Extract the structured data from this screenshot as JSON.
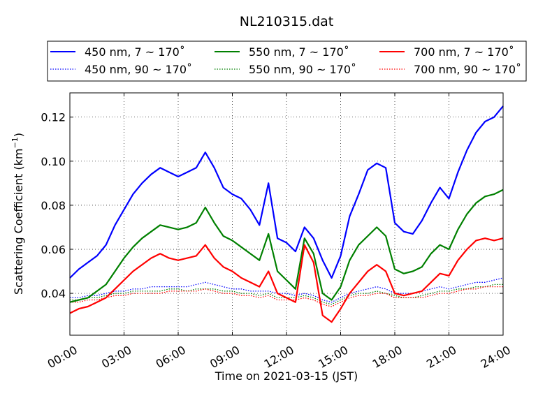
{
  "chart_data": {
    "type": "line",
    "title": "NL210315.dat",
    "xlabel": "Time on 2021-03-15 (JST)",
    "ylabel": "Scattering Coefficient (km",
    "ylabel_sup": "−1",
    "ylabel_end": ")",
    "xlim": [
      "00:00",
      "24:00"
    ],
    "ylim": [
      0.021,
      0.131
    ],
    "x_ticks": [
      "00:00",
      "03:00",
      "06:00",
      "09:00",
      "12:00",
      "15:00",
      "18:00",
      "21:00",
      "24:00"
    ],
    "y_ticks": [
      "0.04",
      "0.06",
      "0.08",
      "0.10",
      "0.12"
    ],
    "y_tick_values": [
      0.04,
      0.06,
      0.08,
      0.1,
      0.12
    ],
    "grid": true,
    "legend_position": "top",
    "x": [
      "00:00",
      "00:30",
      "01:00",
      "01:30",
      "02:00",
      "02:30",
      "03:00",
      "03:30",
      "04:00",
      "04:30",
      "05:00",
      "05:30",
      "06:00",
      "06:30",
      "07:00",
      "07:30",
      "08:00",
      "08:30",
      "09:00",
      "09:30",
      "10:00",
      "10:30",
      "11:00",
      "11:30",
      "12:00",
      "12:30",
      "13:00",
      "13:30",
      "14:00",
      "14:30",
      "15:00",
      "15:30",
      "16:00",
      "16:30",
      "17:00",
      "17:30",
      "18:00",
      "18:30",
      "19:00",
      "19:30",
      "20:00",
      "20:30",
      "21:00",
      "21:30",
      "22:00",
      "22:30",
      "23:00",
      "23:30",
      "24:00"
    ],
    "series": [
      {
        "name": "450 nm, 7 ~ 170˚",
        "color": "#0000ff",
        "style": "solid",
        "values": [
          0.047,
          0.051,
          0.054,
          0.057,
          0.062,
          0.071,
          0.078,
          0.085,
          0.09,
          0.094,
          0.097,
          0.095,
          0.093,
          0.095,
          0.097,
          0.104,
          0.097,
          0.088,
          0.085,
          0.083,
          0.078,
          0.071,
          0.09,
          0.065,
          0.063,
          0.059,
          0.07,
          0.065,
          0.055,
          0.047,
          0.057,
          0.075,
          0.085,
          0.096,
          0.099,
          0.097,
          0.072,
          0.068,
          0.067,
          0.073,
          0.081,
          0.088,
          0.083,
          0.095,
          0.105,
          0.113,
          0.118,
          0.12,
          0.125
        ]
      },
      {
        "name": "550 nm, 7 ~ 170˚",
        "color": "#008000",
        "style": "solid",
        "values": [
          0.036,
          0.037,
          0.038,
          0.041,
          0.044,
          0.05,
          0.056,
          0.061,
          0.065,
          0.068,
          0.071,
          0.07,
          0.069,
          0.07,
          0.072,
          0.079,
          0.072,
          0.066,
          0.064,
          0.061,
          0.058,
          0.055,
          0.067,
          0.05,
          0.046,
          0.042,
          0.065,
          0.058,
          0.04,
          0.037,
          0.043,
          0.055,
          0.062,
          0.066,
          0.07,
          0.066,
          0.051,
          0.049,
          0.05,
          0.052,
          0.058,
          0.062,
          0.06,
          0.069,
          0.076,
          0.081,
          0.084,
          0.085,
          0.087
        ]
      },
      {
        "name": "700 nm, 7 ~ 170˚",
        "color": "#ff0000",
        "style": "solid",
        "values": [
          0.031,
          0.033,
          0.034,
          0.036,
          0.038,
          0.042,
          0.046,
          0.05,
          0.053,
          0.056,
          0.058,
          0.056,
          0.055,
          0.056,
          0.057,
          0.062,
          0.056,
          0.052,
          0.05,
          0.047,
          0.045,
          0.043,
          0.05,
          0.04,
          0.038,
          0.036,
          0.062,
          0.054,
          0.03,
          0.027,
          0.033,
          0.04,
          0.045,
          0.05,
          0.053,
          0.05,
          0.04,
          0.039,
          0.04,
          0.041,
          0.045,
          0.049,
          0.048,
          0.055,
          0.06,
          0.064,
          0.065,
          0.064,
          0.065
        ]
      },
      {
        "name": "450 nm, 90 ~ 170˚",
        "color": "#0000ff",
        "style": "dotted",
        "values": [
          0.038,
          0.038,
          0.039,
          0.039,
          0.04,
          0.041,
          0.041,
          0.042,
          0.042,
          0.043,
          0.043,
          0.043,
          0.043,
          0.043,
          0.044,
          0.045,
          0.044,
          0.043,
          0.042,
          0.042,
          0.041,
          0.041,
          0.041,
          0.04,
          0.04,
          0.039,
          0.04,
          0.039,
          0.037,
          0.036,
          0.038,
          0.04,
          0.041,
          0.042,
          0.043,
          0.042,
          0.04,
          0.04,
          0.04,
          0.041,
          0.042,
          0.043,
          0.042,
          0.043,
          0.044,
          0.045,
          0.045,
          0.046,
          0.047
        ]
      },
      {
        "name": "550 nm, 90 ~ 170˚",
        "color": "#008000",
        "style": "dotted",
        "values": [
          0.037,
          0.037,
          0.038,
          0.038,
          0.039,
          0.04,
          0.04,
          0.041,
          0.041,
          0.041,
          0.041,
          0.042,
          0.042,
          0.041,
          0.042,
          0.042,
          0.042,
          0.041,
          0.041,
          0.04,
          0.04,
          0.039,
          0.04,
          0.038,
          0.038,
          0.038,
          0.039,
          0.038,
          0.036,
          0.035,
          0.037,
          0.039,
          0.04,
          0.04,
          0.041,
          0.04,
          0.039,
          0.038,
          0.038,
          0.039,
          0.04,
          0.041,
          0.041,
          0.042,
          0.042,
          0.043,
          0.043,
          0.044,
          0.044
        ]
      },
      {
        "name": "700 nm, 90 ~ 170˚",
        "color": "#ff0000",
        "style": "dotted",
        "values": [
          0.036,
          0.036,
          0.037,
          0.037,
          0.038,
          0.039,
          0.039,
          0.04,
          0.04,
          0.04,
          0.04,
          0.041,
          0.041,
          0.041,
          0.041,
          0.042,
          0.041,
          0.04,
          0.04,
          0.039,
          0.039,
          0.038,
          0.039,
          0.037,
          0.037,
          0.037,
          0.038,
          0.037,
          0.035,
          0.034,
          0.036,
          0.038,
          0.039,
          0.039,
          0.04,
          0.04,
          0.038,
          0.038,
          0.038,
          0.038,
          0.039,
          0.04,
          0.04,
          0.041,
          0.042,
          0.042,
          0.043,
          0.043,
          0.043
        ]
      }
    ],
    "legend_order": [
      0,
      1,
      2,
      3,
      4,
      5
    ]
  }
}
